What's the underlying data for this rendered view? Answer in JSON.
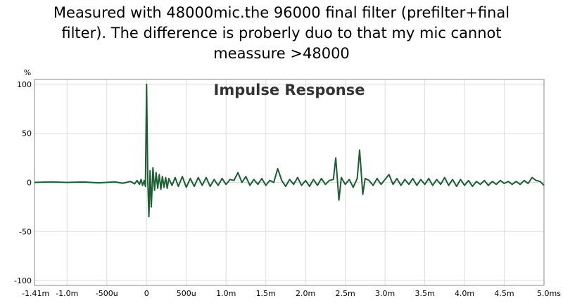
{
  "page": {
    "caption_lines": [
      "Measured with 48000mic.the 96000 final filter (prefilter+final",
      "filter). The difference is proberly duo to that my mic cannot",
      "meassure >48000"
    ]
  },
  "chart_data": {
    "type": "line",
    "title": "Impulse Response",
    "ylabel": "%",
    "xlabel": "",
    "xlim": [
      -1.41,
      5.0
    ],
    "ylim": [
      -105,
      105
    ],
    "grid": true,
    "x_unit": "ms",
    "x_ticks": [
      {
        "v": -1.41,
        "label": "-1.41m"
      },
      {
        "v": -1.0,
        "label": "-1.0m"
      },
      {
        "v": -0.5,
        "label": "-500u"
      },
      {
        "v": 0.0,
        "label": "0"
      },
      {
        "v": 0.5,
        "label": "500u"
      },
      {
        "v": 1.0,
        "label": "1.0m"
      },
      {
        "v": 1.5,
        "label": "1.5m"
      },
      {
        "v": 2.0,
        "label": "2.0m"
      },
      {
        "v": 2.5,
        "label": "2.5m"
      },
      {
        "v": 3.0,
        "label": "3.0m"
      },
      {
        "v": 3.5,
        "label": "3.5m"
      },
      {
        "v": 4.0,
        "label": "4.0m"
      },
      {
        "v": 4.5,
        "label": "4.5m"
      },
      {
        "v": 5.0,
        "label": "5.0ms"
      }
    ],
    "y_ticks": [
      {
        "v": 100,
        "label": "100"
      },
      {
        "v": 50,
        "label": "50"
      },
      {
        "v": 0,
        "label": "0"
      },
      {
        "v": -50,
        "label": "-50"
      },
      {
        "v": -100,
        "label": "-100"
      }
    ],
    "series": [
      {
        "color": "#1a5e32",
        "points": [
          [
            -1.41,
            0
          ],
          [
            -1.2,
            0.5
          ],
          [
            -1.0,
            0
          ],
          [
            -0.8,
            0.4
          ],
          [
            -0.6,
            -0.4
          ],
          [
            -0.4,
            0.5
          ],
          [
            -0.3,
            -0.8
          ],
          [
            -0.2,
            1
          ],
          [
            -0.15,
            -1.5
          ],
          [
            -0.12,
            2
          ],
          [
            -0.09,
            -2
          ],
          [
            -0.07,
            3
          ],
          [
            -0.05,
            -3
          ],
          [
            -0.03,
            2
          ],
          [
            -0.015,
            -4
          ],
          [
            0.0,
            100
          ],
          [
            0.015,
            2
          ],
          [
            0.03,
            -35
          ],
          [
            0.045,
            12
          ],
          [
            0.06,
            -25
          ],
          [
            0.08,
            15
          ],
          [
            0.1,
            -8
          ],
          [
            0.12,
            10
          ],
          [
            0.14,
            -6
          ],
          [
            0.16,
            8
          ],
          [
            0.18,
            -7
          ],
          [
            0.2,
            6
          ],
          [
            0.22,
            -5
          ],
          [
            0.24,
            5
          ],
          [
            0.26,
            -6
          ],
          [
            0.28,
            4
          ],
          [
            0.32,
            -3
          ],
          [
            0.36,
            5
          ],
          [
            0.4,
            -4
          ],
          [
            0.45,
            6
          ],
          [
            0.5,
            -5
          ],
          [
            0.55,
            4
          ],
          [
            0.6,
            -4
          ],
          [
            0.65,
            5
          ],
          [
            0.7,
            -3
          ],
          [
            0.75,
            5
          ],
          [
            0.8,
            -4
          ],
          [
            0.85,
            3
          ],
          [
            0.9,
            -3
          ],
          [
            0.95,
            4
          ],
          [
            1.0,
            -2
          ],
          [
            1.05,
            3
          ],
          [
            1.1,
            2
          ],
          [
            1.15,
            10
          ],
          [
            1.2,
            0
          ],
          [
            1.25,
            6
          ],
          [
            1.3,
            -3
          ],
          [
            1.35,
            3
          ],
          [
            1.4,
            -2
          ],
          [
            1.45,
            4
          ],
          [
            1.5,
            -3
          ],
          [
            1.55,
            2
          ],
          [
            1.6,
            0
          ],
          [
            1.65,
            14
          ],
          [
            1.7,
            2
          ],
          [
            1.75,
            -4
          ],
          [
            1.8,
            3
          ],
          [
            1.85,
            -2
          ],
          [
            1.9,
            5
          ],
          [
            1.95,
            -3
          ],
          [
            2.0,
            2
          ],
          [
            2.05,
            -4
          ],
          [
            2.1,
            3
          ],
          [
            2.15,
            -3
          ],
          [
            2.2,
            4
          ],
          [
            2.25,
            -2
          ],
          [
            2.3,
            2
          ],
          [
            2.35,
            3
          ],
          [
            2.38,
            25
          ],
          [
            2.42,
            -18
          ],
          [
            2.45,
            5
          ],
          [
            2.5,
            -2
          ],
          [
            2.55,
            3
          ],
          [
            2.6,
            -5
          ],
          [
            2.65,
            4
          ],
          [
            2.68,
            33
          ],
          [
            2.72,
            -12
          ],
          [
            2.75,
            4
          ],
          [
            2.8,
            2
          ],
          [
            2.85,
            -3
          ],
          [
            2.9,
            4
          ],
          [
            2.95,
            -2
          ],
          [
            3.0,
            3
          ],
          [
            3.05,
            8
          ],
          [
            3.1,
            -2
          ],
          [
            3.15,
            4
          ],
          [
            3.2,
            -3
          ],
          [
            3.25,
            3
          ],
          [
            3.3,
            -2
          ],
          [
            3.35,
            4
          ],
          [
            3.4,
            -3
          ],
          [
            3.45,
            3
          ],
          [
            3.5,
            -2
          ],
          [
            3.55,
            4
          ],
          [
            3.6,
            -3
          ],
          [
            3.65,
            3
          ],
          [
            3.7,
            -2
          ],
          [
            3.75,
            5
          ],
          [
            3.8,
            -3
          ],
          [
            3.85,
            3
          ],
          [
            3.9,
            -4
          ],
          [
            3.95,
            3
          ],
          [
            4.0,
            -3
          ],
          [
            4.05,
            2
          ],
          [
            4.1,
            -4
          ],
          [
            4.15,
            1
          ],
          [
            4.2,
            -2
          ],
          [
            4.25,
            2
          ],
          [
            4.3,
            -3
          ],
          [
            4.35,
            1
          ],
          [
            4.4,
            -2
          ],
          [
            4.45,
            2
          ],
          [
            4.5,
            -1
          ],
          [
            4.55,
            1
          ],
          [
            4.6,
            -2
          ],
          [
            4.65,
            1
          ],
          [
            4.7,
            -2
          ],
          [
            4.75,
            2
          ],
          [
            4.8,
            -1
          ],
          [
            4.85,
            5
          ],
          [
            4.9,
            2
          ],
          [
            4.95,
            1
          ],
          [
            5.0,
            -3
          ]
        ]
      }
    ]
  }
}
